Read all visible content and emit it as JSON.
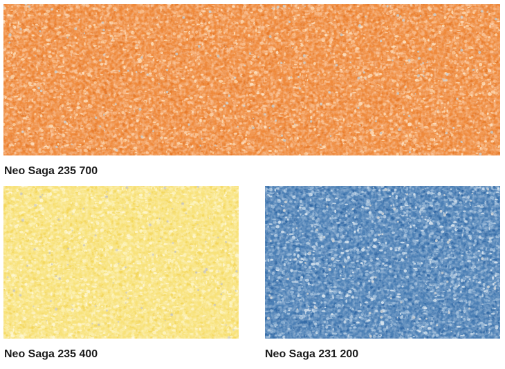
{
  "samples": [
    {
      "caption": "Neo Saga 235 700",
      "colors": {
        "base": "#ef8a3c",
        "dark": "#e67a2a",
        "light": "#f7b27a",
        "pale": "#fbd2a6",
        "fleck": "#c9bfb4"
      }
    },
    {
      "caption": "Neo Saga 235 400",
      "colors": {
        "base": "#f8e27a",
        "dark": "#f3d65a",
        "light": "#fbeea6",
        "pale": "#fdf4c6",
        "fleck": "#cfc9b3"
      }
    },
    {
      "caption": "Neo Saga 231 200",
      "colors": {
        "base": "#4b7fb5",
        "dark": "#2f67a4",
        "light": "#8fb2d4",
        "pale": "#c9dae9",
        "fleck": "#b9c3cc"
      }
    }
  ]
}
